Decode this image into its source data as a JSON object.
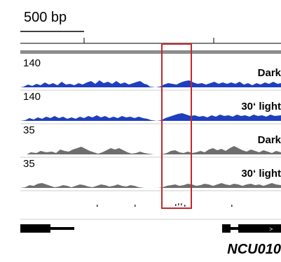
{
  "scale": {
    "label": "500 bp"
  },
  "tracks": [
    {
      "max": "140",
      "sample": "Dark",
      "color": "#1f3fbf"
    },
    {
      "max": "140",
      "sample": "30‘ light",
      "color": "#1f3fbf"
    },
    {
      "max": "35",
      "sample": "Dark",
      "color": "#6e6e6e"
    },
    {
      "max": "35",
      "sample": "30‘ light",
      "color": "#6e6e6e"
    }
  ],
  "gene": {
    "name": "NCU010"
  },
  "highlight": {
    "color": "#c0282d"
  }
}
